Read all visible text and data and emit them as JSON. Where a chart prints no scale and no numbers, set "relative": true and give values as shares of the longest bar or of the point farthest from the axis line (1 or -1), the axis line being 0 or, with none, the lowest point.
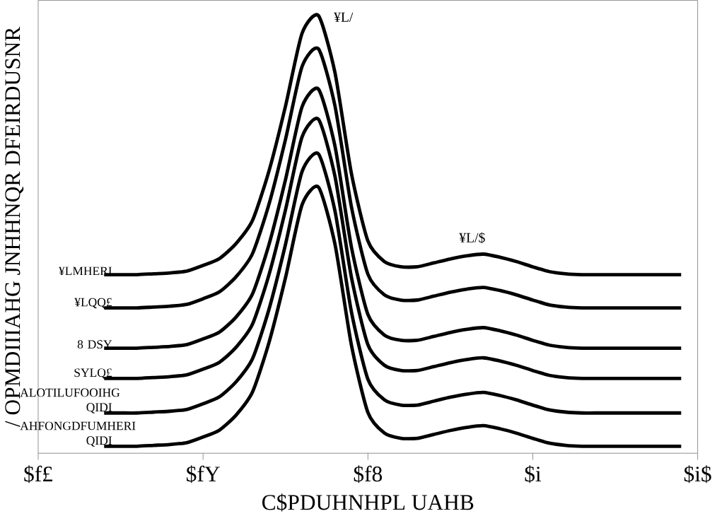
{
  "chart_data": {
    "type": "line",
    "relative": true,
    "xlabel": "C$PDUHNHPL UAHB",
    "ylabel": "/ OPMDIIIAHG JNHHNQR DFEIRDUSNR",
    "categories": [
      "$f£",
      null,
      null,
      null,
      null,
      null,
      null,
      null,
      null,
      null,
      "$fY",
      null,
      null,
      null,
      null,
      null,
      null,
      null,
      null,
      null,
      "$f8",
      null,
      null,
      null,
      null,
      null,
      null,
      null,
      null,
      null,
      "$i",
      null,
      null,
      null,
      null,
      null,
      null,
      null,
      null,
      null,
      "$i$"
    ],
    "series": [
      {
        "name": "¥LMHERI",
        "color": "#000000",
        "values": [
          null,
          null,
          null,
          null,
          0.408,
          0.408,
          0.408,
          0.41,
          0.412,
          0.416,
          0.429,
          0.445,
          0.479,
          0.532,
          0.645,
          0.793,
          0.959,
          1.0,
          0.87,
          0.639,
          0.485,
          0.438,
          0.426,
          0.426,
          0.435,
          0.444,
          0.451,
          0.455,
          0.448,
          0.438,
          0.426,
          0.415,
          0.41,
          0.408,
          0.408,
          0.408,
          0.408,
          0.408,
          0.408,
          0.408,
          null
        ]
      },
      {
        "name": "¥LQQ£",
        "color": "#000000",
        "values": [
          null,
          null,
          null,
          null,
          0.332,
          0.332,
          0.332,
          0.334,
          0.336,
          0.34,
          0.353,
          0.369,
          0.403,
          0.456,
          0.569,
          0.717,
          0.883,
          0.924,
          0.794,
          0.563,
          0.409,
          0.362,
          0.35,
          0.35,
          0.359,
          0.368,
          0.375,
          0.379,
          0.372,
          0.362,
          0.35,
          0.339,
          0.334,
          0.332,
          0.332,
          0.332,
          0.332,
          0.332,
          0.332,
          0.332,
          null
        ]
      },
      {
        "name": "8 DSY",
        "color": "#000000",
        "values": [
          null,
          null,
          null,
          null,
          0.24,
          0.24,
          0.24,
          0.242,
          0.244,
          0.248,
          0.261,
          0.277,
          0.311,
          0.364,
          0.477,
          0.625,
          0.791,
          0.832,
          0.702,
          0.471,
          0.317,
          0.27,
          0.258,
          0.258,
          0.267,
          0.276,
          0.283,
          0.287,
          0.28,
          0.27,
          0.258,
          0.247,
          0.242,
          0.24,
          0.24,
          0.24,
          0.24,
          0.24,
          0.24,
          0.24,
          null
        ]
      },
      {
        "name": "SYLQ£",
        "color": "#000000",
        "values": [
          null,
          null,
          null,
          null,
          0.171,
          0.171,
          0.171,
          0.173,
          0.175,
          0.179,
          0.192,
          0.208,
          0.242,
          0.295,
          0.408,
          0.556,
          0.722,
          0.763,
          0.633,
          0.402,
          0.248,
          0.201,
          0.189,
          0.189,
          0.198,
          0.207,
          0.214,
          0.218,
          0.211,
          0.201,
          0.189,
          0.178,
          0.173,
          0.171,
          0.171,
          0.171,
          0.171,
          0.171,
          0.171,
          0.171,
          null
        ]
      },
      {
        "name": "ALOTILUFOOIHG QIDI",
        "color": "#000000",
        "values": [
          null,
          null,
          null,
          null,
          0.092,
          0.092,
          0.092,
          0.094,
          0.096,
          0.1,
          0.113,
          0.129,
          0.163,
          0.216,
          0.329,
          0.477,
          0.643,
          0.684,
          0.554,
          0.323,
          0.169,
          0.122,
          0.11,
          0.11,
          0.119,
          0.128,
          0.135,
          0.139,
          0.132,
          0.122,
          0.11,
          0.099,
          0.094,
          0.092,
          0.092,
          0.092,
          0.092,
          0.092,
          0.092,
          0.092,
          null
        ]
      },
      {
        "name": "AHFONGDFUMHERI QIDI",
        "color": "#000000",
        "values": [
          null,
          null,
          null,
          null,
          0.016,
          0.016,
          0.016,
          0.018,
          0.02,
          0.024,
          0.037,
          0.053,
          0.087,
          0.14,
          0.253,
          0.401,
          0.567,
          0.608,
          0.478,
          0.247,
          0.093,
          0.046,
          0.034,
          0.034,
          0.043,
          0.052,
          0.059,
          0.063,
          0.056,
          0.046,
          0.034,
          0.023,
          0.018,
          0.016,
          0.016,
          0.016,
          0.016,
          0.016,
          0.016,
          0.016,
          null
        ]
      }
    ],
    "annotations": [
      "¥L/",
      "¥L/$"
    ],
    "marker": "none",
    "line_style": "solid"
  }
}
